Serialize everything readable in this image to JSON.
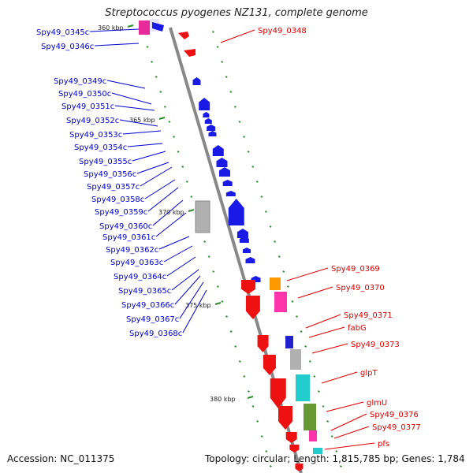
{
  "title": "Streptococcus pyogenes NZ131, complete genome",
  "accession_text": "Accession: NC_011375",
  "summary_text": "Topology: circular; Length: 1,815,785 bp; Genes: 1,784",
  "colors": {
    "backbone": "#888888",
    "tick": "#2e8b2e",
    "left_label": "#0000cc",
    "right_label": "#dd0000"
  },
  "scale_labels": [
    "360 kbp",
    "365 kbp",
    "370 kbp",
    "375 kbp",
    "380 kbp"
  ],
  "left_genes": [
    "Spy49_0345c",
    "Spy49_0346c",
    "Spy49_0349c",
    "Spy49_0350c",
    "Spy49_0351c",
    "Spy49_0352c",
    "Spy49_0353c",
    "Spy49_0354c",
    "Spy49_0355c",
    "Spy49_0356c",
    "Spy49_0357c",
    "Spy49_0358c",
    "Spy49_0359c",
    "Spy49_0360c",
    "Spy49_0361c",
    "Spy49_0362c",
    "Spy49_0363c",
    "Spy49_0364c",
    "Spy49_0365c",
    "Spy49_0366c",
    "Spy49_0367c",
    "Spy49_0368c"
  ],
  "right_genes": [
    "Spy49_0348",
    "Spy49_0369",
    "Spy49_0370",
    "Spy49_0371",
    "fabG",
    "Spy49_0373",
    "glpT",
    "glmU",
    "Spy49_0376",
    "Spy49_0377",
    "pfs"
  ]
}
